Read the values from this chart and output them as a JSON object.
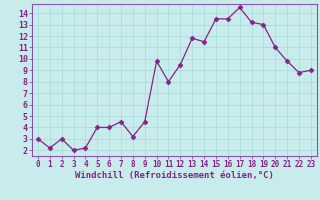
{
  "x": [
    0,
    1,
    2,
    3,
    4,
    5,
    6,
    7,
    8,
    9,
    10,
    11,
    12,
    13,
    14,
    15,
    16,
    17,
    18,
    19,
    20,
    21,
    22,
    23
  ],
  "y": [
    3.0,
    2.2,
    3.0,
    2.0,
    2.2,
    4.0,
    4.0,
    4.5,
    3.2,
    4.5,
    9.8,
    8.0,
    9.5,
    11.8,
    11.5,
    13.5,
    13.5,
    14.5,
    13.2,
    13.0,
    11.0,
    9.8,
    8.8,
    9.0
  ],
  "line_color": "#882288",
  "marker": "D",
  "markersize": 2.5,
  "linewidth": 0.9,
  "bg_color": "#c8ecec",
  "grid_color": "#aadddd",
  "xlabel": "Windchill (Refroidissement éolien,°C)",
  "xlim": [
    -0.5,
    23.5
  ],
  "ylim": [
    1.5,
    14.8
  ],
  "yticks": [
    2,
    3,
    4,
    5,
    6,
    7,
    8,
    9,
    10,
    11,
    12,
    13,
    14
  ],
  "xticks": [
    0,
    1,
    2,
    3,
    4,
    5,
    6,
    7,
    8,
    9,
    10,
    11,
    12,
    13,
    14,
    15,
    16,
    17,
    18,
    19,
    20,
    21,
    22,
    23
  ],
  "tick_fontsize": 5.5,
  "xlabel_fontsize": 6.5,
  "spine_color": "#8855aa",
  "tick_color": "#882288"
}
